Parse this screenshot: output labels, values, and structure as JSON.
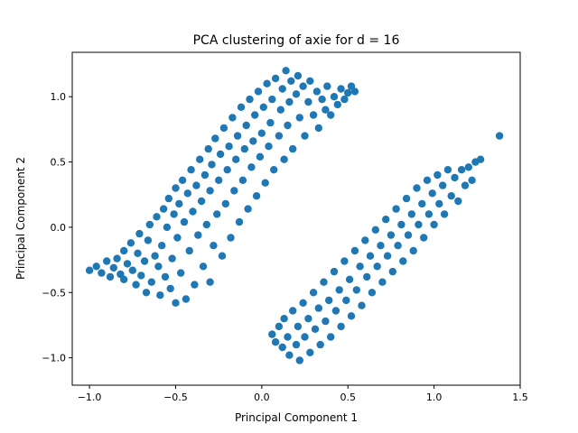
{
  "chart_data": {
    "type": "scatter",
    "title": "PCA clustering of axie for d = 16",
    "xlabel": "Principal Component 1",
    "ylabel": "Principal Component 2",
    "xlim": [
      -1.1,
      1.5
    ],
    "ylim": [
      -1.21,
      1.34
    ],
    "xticks": [
      -1.0,
      -0.5,
      0.0,
      0.5,
      1.0,
      1.5
    ],
    "xtick_labels": [
      "−1.0",
      "−0.5",
      "0.0",
      "0.5",
      "1.0",
      "1.5"
    ],
    "yticks": [
      -1.0,
      -0.5,
      0.0,
      0.5,
      1.0
    ],
    "ytick_labels": [
      "−1.0",
      "−0.5",
      "0.0",
      "0.5",
      "1.0"
    ],
    "grid": false,
    "color": "#1f77b4",
    "series": [
      {
        "points": [
          [
            -1.0,
            -0.33
          ],
          [
            -0.96,
            -0.3
          ],
          [
            -0.93,
            -0.35
          ],
          [
            -0.9,
            -0.26
          ],
          [
            -0.88,
            -0.38
          ],
          [
            -0.86,
            -0.31
          ],
          [
            -0.84,
            -0.24
          ],
          [
            -0.82,
            -0.36
          ],
          [
            -0.8,
            -0.18
          ],
          [
            -0.8,
            -0.4
          ],
          [
            -0.78,
            -0.28
          ],
          [
            -0.76,
            -0.12
          ],
          [
            -0.75,
            -0.33
          ],
          [
            -0.73,
            -0.44
          ],
          [
            -0.72,
            -0.2
          ],
          [
            -0.71,
            -0.05
          ],
          [
            -0.7,
            -0.37
          ],
          [
            -0.68,
            -0.26
          ],
          [
            -0.67,
            -0.5
          ],
          [
            -0.66,
            -0.1
          ],
          [
            -0.65,
            0.02
          ],
          [
            -0.64,
            -0.42
          ],
          [
            -0.62,
            -0.22
          ],
          [
            -0.61,
            0.08
          ],
          [
            -0.6,
            -0.3
          ],
          [
            -0.59,
            -0.52
          ],
          [
            -0.58,
            -0.14
          ],
          [
            -0.57,
            0.14
          ],
          [
            -0.56,
            -0.38
          ],
          [
            -0.55,
            0.0
          ],
          [
            -0.54,
            0.22
          ],
          [
            -0.53,
            -0.47
          ],
          [
            -0.52,
            -0.24
          ],
          [
            -0.51,
            0.1
          ],
          [
            -0.5,
            0.3
          ],
          [
            -0.5,
            -0.58
          ],
          [
            -0.49,
            -0.08
          ],
          [
            -0.48,
            0.18
          ],
          [
            -0.47,
            -0.35
          ],
          [
            -0.46,
            0.36
          ],
          [
            -0.45,
            0.04
          ],
          [
            -0.44,
            -0.55
          ],
          [
            -0.43,
            0.26
          ],
          [
            -0.42,
            -0.18
          ],
          [
            -0.41,
            0.44
          ],
          [
            -0.4,
            0.12
          ],
          [
            -0.39,
            -0.44
          ],
          [
            -0.38,
            0.32
          ],
          [
            -0.37,
            -0.06
          ],
          [
            -0.36,
            0.52
          ],
          [
            -0.35,
            0.2
          ],
          [
            -0.34,
            -0.3
          ],
          [
            -0.33,
            0.4
          ],
          [
            -0.32,
            0.02
          ],
          [
            -0.31,
            0.6
          ],
          [
            -0.3,
            -0.42
          ],
          [
            -0.3,
            0.28
          ],
          [
            -0.29,
            0.48
          ],
          [
            -0.28,
            -0.14
          ],
          [
            -0.27,
            0.68
          ],
          [
            -0.26,
            0.1
          ],
          [
            -0.25,
            0.36
          ],
          [
            -0.24,
            0.56
          ],
          [
            -0.23,
            -0.22
          ],
          [
            -0.22,
            0.76
          ],
          [
            -0.21,
            0.18
          ],
          [
            -0.2,
            0.44
          ],
          [
            -0.19,
            0.62
          ],
          [
            -0.18,
            -0.08
          ],
          [
            -0.17,
            0.84
          ],
          [
            -0.16,
            0.28
          ],
          [
            -0.15,
            0.52
          ],
          [
            -0.14,
            0.7
          ],
          [
            -0.13,
            0.04
          ],
          [
            -0.12,
            0.92
          ],
          [
            -0.11,
            0.36
          ],
          [
            -0.1,
            0.6
          ],
          [
            -0.09,
            0.78
          ],
          [
            -0.08,
            0.14
          ],
          [
            -0.07,
            0.98
          ],
          [
            -0.06,
            0.46
          ],
          [
            -0.05,
            0.66
          ],
          [
            -0.04,
            0.86
          ],
          [
            -0.03,
            0.24
          ],
          [
            -0.02,
            1.04
          ],
          [
            -0.01,
            0.54
          ],
          [
            0.0,
            0.72
          ],
          [
            0.01,
            0.92
          ],
          [
            0.02,
            0.34
          ],
          [
            0.03,
            1.1
          ],
          [
            0.04,
            0.62
          ],
          [
            0.05,
            0.8
          ],
          [
            0.06,
            0.98
          ],
          [
            0.07,
            0.44
          ],
          [
            0.08,
            1.14
          ],
          [
            0.1,
            0.7
          ],
          [
            0.11,
            0.9
          ],
          [
            0.12,
            1.06
          ],
          [
            0.13,
            0.52
          ],
          [
            0.14,
            1.2
          ],
          [
            0.15,
            0.78
          ],
          [
            0.16,
            0.96
          ],
          [
            0.17,
            1.12
          ],
          [
            0.18,
            0.6
          ],
          [
            0.2,
            1.02
          ],
          [
            0.21,
            1.16
          ],
          [
            0.22,
            0.84
          ],
          [
            0.24,
            1.08
          ],
          [
            0.25,
            0.7
          ],
          [
            0.27,
            0.96
          ],
          [
            0.28,
            1.12
          ],
          [
            0.3,
            0.86
          ],
          [
            0.32,
            1.04
          ],
          [
            0.33,
            0.76
          ],
          [
            0.35,
            0.98
          ],
          [
            0.37,
            0.9
          ],
          [
            0.38,
            1.08
          ],
          [
            0.4,
            0.86
          ],
          [
            0.42,
            1.0
          ],
          [
            0.44,
            0.94
          ],
          [
            0.46,
            1.06
          ],
          [
            0.48,
            0.98
          ],
          [
            0.5,
            1.03
          ],
          [
            0.52,
            1.08
          ],
          [
            0.54,
            1.04
          ]
        ]
      },
      {
        "points": [
          [
            0.06,
            -0.82
          ],
          [
            0.08,
            -0.88
          ],
          [
            0.1,
            -0.76
          ],
          [
            0.12,
            -0.92
          ],
          [
            0.13,
            -0.7
          ],
          [
            0.15,
            -0.84
          ],
          [
            0.16,
            -0.98
          ],
          [
            0.18,
            -0.64
          ],
          [
            0.2,
            -0.9
          ],
          [
            0.21,
            -0.76
          ],
          [
            0.22,
            -1.02
          ],
          [
            0.24,
            -0.58
          ],
          [
            0.25,
            -0.84
          ],
          [
            0.27,
            -0.7
          ],
          [
            0.28,
            -0.96
          ],
          [
            0.3,
            -0.5
          ],
          [
            0.31,
            -0.78
          ],
          [
            0.33,
            -0.62
          ],
          [
            0.34,
            -0.9
          ],
          [
            0.36,
            -0.42
          ],
          [
            0.37,
            -0.72
          ],
          [
            0.39,
            -0.56
          ],
          [
            0.4,
            -0.84
          ],
          [
            0.42,
            -0.34
          ],
          [
            0.43,
            -0.64
          ],
          [
            0.45,
            -0.48
          ],
          [
            0.46,
            -0.76
          ],
          [
            0.48,
            -0.26
          ],
          [
            0.49,
            -0.56
          ],
          [
            0.51,
            -0.4
          ],
          [
            0.52,
            -0.68
          ],
          [
            0.54,
            -0.18
          ],
          [
            0.55,
            -0.48
          ],
          [
            0.57,
            -0.3
          ],
          [
            0.58,
            -0.6
          ],
          [
            0.6,
            -0.1
          ],
          [
            0.61,
            -0.38
          ],
          [
            0.63,
            -0.22
          ],
          [
            0.64,
            -0.5
          ],
          [
            0.66,
            -0.02
          ],
          [
            0.67,
            -0.3
          ],
          [
            0.69,
            -0.14
          ],
          [
            0.7,
            -0.42
          ],
          [
            0.72,
            0.06
          ],
          [
            0.73,
            -0.22
          ],
          [
            0.75,
            -0.06
          ],
          [
            0.76,
            -0.34
          ],
          [
            0.78,
            0.14
          ],
          [
            0.79,
            -0.14
          ],
          [
            0.81,
            0.02
          ],
          [
            0.82,
            -0.26
          ],
          [
            0.84,
            0.22
          ],
          [
            0.85,
            -0.06
          ],
          [
            0.87,
            0.1
          ],
          [
            0.88,
            -0.18
          ],
          [
            0.9,
            0.3
          ],
          [
            0.91,
            0.02
          ],
          [
            0.93,
            0.18
          ],
          [
            0.94,
            -0.08
          ],
          [
            0.96,
            0.36
          ],
          [
            0.97,
            0.1
          ],
          [
            0.99,
            0.26
          ],
          [
            1.0,
            0.02
          ],
          [
            1.02,
            0.4
          ],
          [
            1.03,
            0.18
          ],
          [
            1.05,
            0.32
          ],
          [
            1.06,
            0.1
          ],
          [
            1.08,
            0.44
          ],
          [
            1.1,
            0.24
          ],
          [
            1.12,
            0.38
          ],
          [
            1.14,
            0.2
          ],
          [
            1.16,
            0.44
          ],
          [
            1.18,
            0.32
          ],
          [
            1.2,
            0.46
          ],
          [
            1.22,
            0.36
          ],
          [
            1.24,
            0.5
          ],
          [
            1.27,
            0.52
          ],
          [
            1.38,
            0.7
          ]
        ]
      }
    ]
  }
}
